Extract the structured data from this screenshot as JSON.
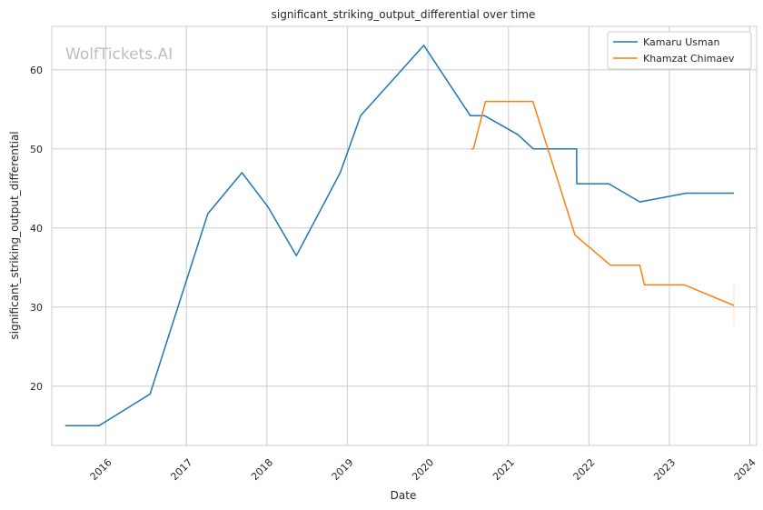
{
  "chart_data": {
    "type": "line",
    "title": "significant_striking_output_differential over time",
    "xlabel": "Date",
    "ylabel": "significant_striking_output_differential",
    "watermark": "WolfTickets.AI",
    "x_ticks": [
      "2016",
      "2017",
      "2018",
      "2019",
      "2020",
      "2021",
      "2022",
      "2023",
      "2024"
    ],
    "y_ticks": [
      20,
      30,
      40,
      50,
      60
    ],
    "xlim": [
      "2015-05-01",
      "2024-02-01"
    ],
    "ylim": [
      12.5,
      65.5
    ],
    "grid": true,
    "legend_position": "top-right",
    "series": [
      {
        "name": "Kamaru Usman",
        "color": "#1f77b4",
        "points": [
          [
            "2015-07-01",
            15.0
          ],
          [
            "2015-12-01",
            15.0
          ],
          [
            "2016-07-20",
            19.0
          ],
          [
            "2017-04-08",
            41.8
          ],
          [
            "2017-09-10",
            47.0
          ],
          [
            "2018-01-05",
            42.7
          ],
          [
            "2018-05-15",
            36.5
          ],
          [
            "2018-11-30",
            47.0
          ],
          [
            "2019-03-02",
            54.2
          ],
          [
            "2019-12-14",
            63.1
          ],
          [
            "2020-07-12",
            54.2
          ],
          [
            "2020-09-15",
            54.2
          ],
          [
            "2021-02-13",
            51.8
          ],
          [
            "2021-04-24",
            50.0
          ],
          [
            "2021-11-06",
            50.0
          ],
          [
            "2021-11-07",
            45.6
          ],
          [
            "2022-04-01",
            45.6
          ],
          [
            "2022-08-20",
            43.3
          ],
          [
            "2023-03-18",
            44.4
          ],
          [
            "2023-10-21",
            44.4
          ]
        ]
      },
      {
        "name": "Khamzat Chimaev",
        "color": "#ff7f0e",
        "points": [
          [
            "2020-07-16",
            50.0
          ],
          [
            "2020-07-26",
            50.0
          ],
          [
            "2020-09-19",
            56.0
          ],
          [
            "2021-04-22",
            56.0
          ],
          [
            "2021-10-30",
            39.1
          ],
          [
            "2022-04-09",
            35.3
          ],
          [
            "2022-08-20",
            35.3
          ],
          [
            "2022-09-10",
            32.8
          ],
          [
            "2023-03-10",
            32.8
          ],
          [
            "2023-10-21",
            30.2
          ]
        ]
      }
    ]
  }
}
